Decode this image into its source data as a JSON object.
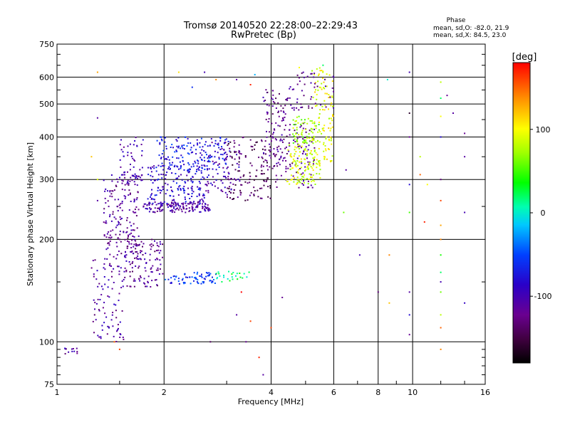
{
  "chart_data": {
    "type": "scatter",
    "title": "Tromsø 20140520 22:28:00–22:29:43",
    "subtitle": "RwPretec (Bp)",
    "xlabel": "Frequency [MHz]",
    "ylabel": "Stationary phase Virtual Height [km]",
    "xscale": "log",
    "yscale": "log",
    "xlim": [
      1,
      16
    ],
    "ylim": [
      75,
      750
    ],
    "xticks": [
      "1",
      "2",
      "4",
      "6",
      "8",
      "10",
      "16"
    ],
    "xtick_values": [
      1,
      2,
      4,
      6,
      8,
      10,
      16
    ],
    "yticks": [
      "75",
      "100",
      "200",
      "300",
      "400",
      "500",
      "600",
      "750"
    ],
    "ytick_values": [
      75,
      100,
      200,
      300,
      400,
      500,
      600,
      750
    ],
    "grid": true,
    "phase_legend": {
      "heading": "Phase",
      "line1": "mean, sd,O:  -82.0, 21.9",
      "line2": "mean, sd,X:  84.5, 23.0"
    },
    "colorbar": {
      "label": "[deg]",
      "range": [
        -180,
        180
      ],
      "ticks": [
        "100",
        "0",
        "-100"
      ],
      "tick_values": [
        100,
        0,
        -100
      ],
      "placement": "right"
    },
    "clusters": [
      {
        "f": [
          1.25,
          1.55
        ],
        "h": [
          100,
          175
        ],
        "phase": -110,
        "n": 90
      },
      {
        "f": [
          1.35,
          1.7
        ],
        "h": [
          175,
          310
        ],
        "phase": -115,
        "n": 170
      },
      {
        "f": [
          1.5,
          1.75
        ],
        "h": [
          290,
          400
        ],
        "phase": -100,
        "n": 60
      },
      {
        "f": [
          1.55,
          2.0
        ],
        "h": [
          145,
          200
        ],
        "phase": -115,
        "n": 120
      },
      {
        "f": [
          1.75,
          2.7
        ],
        "h": [
          240,
          258
        ],
        "phase": -110,
        "n": 150
      },
      {
        "f": [
          1.8,
          2.6
        ],
        "h": [
          255,
          330
        ],
        "phase": -85,
        "n": 160
      },
      {
        "f": [
          1.9,
          3.0
        ],
        "h": [
          320,
          400
        ],
        "phase": -70,
        "n": 160
      },
      {
        "f": [
          2.6,
          3.3
        ],
        "h": [
          270,
          390
        ],
        "phase": -100,
        "n": 90
      },
      {
        "f": [
          2.0,
          2.8
        ],
        "h": [
          148,
          160
        ],
        "phase": -60,
        "n": 70
      },
      {
        "f": [
          2.8,
          3.5
        ],
        "h": [
          150,
          162
        ],
        "phase": 20,
        "n": 25
      },
      {
        "f": [
          3.0,
          4.0
        ],
        "h": [
          260,
          400
        ],
        "phase": -140,
        "n": 130
      },
      {
        "f": [
          3.8,
          4.6
        ],
        "h": [
          320,
          560
        ],
        "phase": -120,
        "n": 90
      },
      {
        "f": [
          4.0,
          5.3
        ],
        "h": [
          280,
          440
        ],
        "phase": -120,
        "n": 110
      },
      {
        "f": [
          4.4,
          5.5
        ],
        "h": [
          290,
          380
        ],
        "phase": 90,
        "n": 120
      },
      {
        "f": [
          4.6,
          5.5
        ],
        "h": [
          380,
          460
        ],
        "phase": 70,
        "n": 70
      },
      {
        "f": [
          5.2,
          6.0
        ],
        "h": [
          330,
          640
        ],
        "phase": 95,
        "n": 110
      },
      {
        "f": [
          4.4,
          6.0
        ],
        "h": [
          480,
          620
        ],
        "phase": -120,
        "n": 50
      },
      {
        "f": [
          1.05,
          1.15
        ],
        "h": [
          92,
          96
        ],
        "phase": -110,
        "n": 12
      }
    ],
    "scattered_points": [
      [
        2.2,
        620,
        110
      ],
      [
        2.4,
        560,
        -60
      ],
      [
        2.6,
        620,
        -100
      ],
      [
        2.8,
        590,
        140
      ],
      [
        3.2,
        590,
        -110
      ],
      [
        3.5,
        570,
        170
      ],
      [
        3.6,
        610,
        -20
      ],
      [
        4.8,
        640,
        100
      ],
      [
        8.5,
        590,
        0
      ],
      [
        9.8,
        620,
        -100
      ],
      [
        9.8,
        470,
        -160
      ],
      [
        9.8,
        400,
        -120
      ],
      [
        9.8,
        290,
        -80
      ],
      [
        9.8,
        240,
        50
      ],
      [
        9.8,
        140,
        -110
      ],
      [
        9.8,
        120,
        -80
      ],
      [
        9.8,
        105,
        -120
      ],
      [
        8.6,
        180,
        140
      ],
      [
        8.0,
        140,
        -130
      ],
      [
        8.6,
        130,
        120
      ],
      [
        12.0,
        580,
        80
      ],
      [
        12.0,
        520,
        20
      ],
      [
        12.0,
        460,
        100
      ],
      [
        12.0,
        400,
        -80
      ],
      [
        12.0,
        300,
        -130
      ],
      [
        12.0,
        260,
        160
      ],
      [
        12.0,
        220,
        130
      ],
      [
        12.0,
        200,
        140
      ],
      [
        12.0,
        180,
        40
      ],
      [
        12.0,
        160,
        20
      ],
      [
        12.0,
        150,
        -100
      ],
      [
        12.0,
        140,
        60
      ],
      [
        12.0,
        120,
        80
      ],
      [
        12.0,
        110,
        150
      ],
      [
        12.0,
        95,
        140
      ],
      [
        12.5,
        530,
        -120
      ],
      [
        13.0,
        470,
        -110
      ],
      [
        14.0,
        410,
        -120
      ],
      [
        14.0,
        350,
        -110
      ],
      [
        14.0,
        240,
        -100
      ],
      [
        14.0,
        130,
        -90
      ],
      [
        10.5,
        350,
        80
      ],
      [
        10.5,
        310,
        150
      ],
      [
        10.8,
        225,
        170
      ],
      [
        11.0,
        290,
        100
      ],
      [
        1.3,
        620,
        130
      ],
      [
        1.3,
        300,
        90
      ],
      [
        1.3,
        260,
        -110
      ],
      [
        1.25,
        350,
        120
      ],
      [
        1.45,
        100,
        150
      ],
      [
        1.5,
        95,
        160
      ],
      [
        1.3,
        455,
        -110
      ],
      [
        6.4,
        240,
        60
      ],
      [
        6.5,
        320,
        -110
      ],
      [
        7.1,
        180,
        -100
      ],
      [
        5.6,
        650,
        20
      ],
      [
        3.8,
        80,
        -110
      ],
      [
        3.7,
        90,
        170
      ],
      [
        3.4,
        100,
        -120
      ],
      [
        3.5,
        115,
        160
      ],
      [
        3.2,
        120,
        -110
      ],
      [
        3.3,
        140,
        180
      ],
      [
        2.7,
        100,
        -140
      ],
      [
        4.3,
        135,
        -120
      ],
      [
        4.0,
        110,
        160
      ],
      [
        8.3,
        75,
        150
      ],
      [
        9.0,
        75,
        -150
      ]
    ]
  }
}
